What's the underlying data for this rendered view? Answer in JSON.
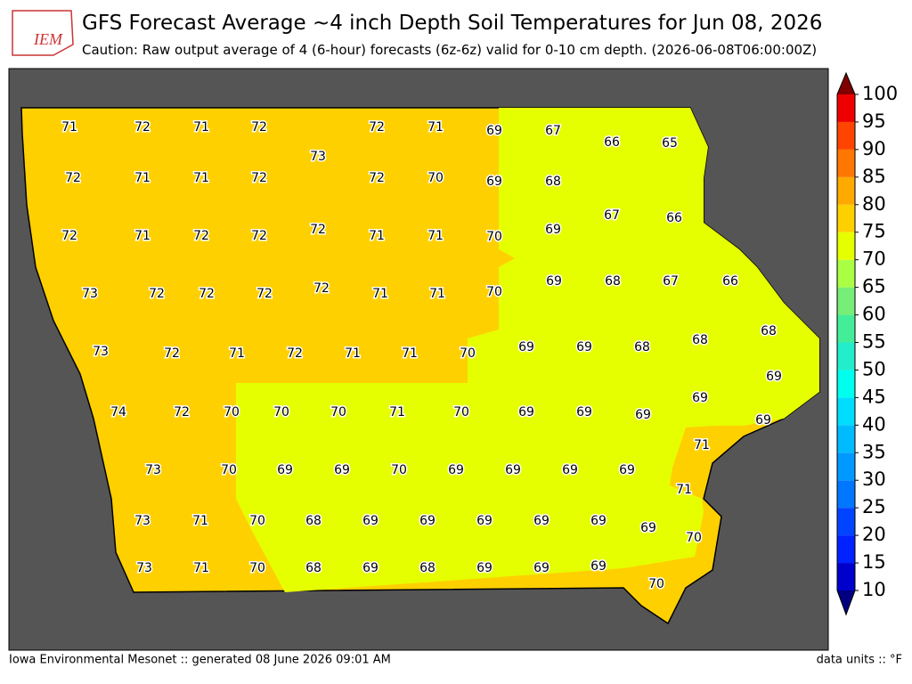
{
  "header": {
    "logo": "IEM",
    "title": "GFS Forecast Average ~4 inch Depth Soil Temperatures for Jun 08, 2026",
    "subtitle": "Caution: Raw output average of 4 (6-hour) forecasts (6z-6z) valid for 0-10 cm depth. (2026-06-08T06:00:00Z)"
  },
  "counties": [
    71,
    72,
    71,
    72,
    72,
    71,
    69,
    67,
    66,
    65,
    73,
    72,
    71,
    71,
    72,
    72,
    70,
    69,
    68,
    72,
    71,
    72,
    72,
    72,
    71,
    71,
    70,
    69,
    67,
    66,
    73,
    72,
    72,
    72,
    72,
    71,
    71,
    70,
    69,
    68,
    67,
    66,
    73,
    72,
    71,
    72,
    71,
    71,
    70,
    69,
    69,
    68,
    68,
    68,
    74,
    72,
    70,
    70,
    70,
    71,
    70,
    69,
    69,
    69,
    69,
    69,
    69,
    71,
    73,
    70,
    69,
    69,
    70,
    69,
    69,
    69,
    69,
    71,
    73,
    71,
    70,
    68,
    69,
    69,
    69,
    69,
    69,
    69,
    70,
    73,
    71,
    70,
    68,
    69,
    68,
    69,
    69,
    69,
    70
  ],
  "colorbar": {
    "ticks": [
      10,
      15,
      20,
      25,
      30,
      35,
      40,
      45,
      50,
      55,
      60,
      65,
      70,
      75,
      80,
      85,
      90,
      95,
      100
    ],
    "colors": [
      "#0000cc",
      "#0022ff",
      "#0044ff",
      "#0077ff",
      "#0099ff",
      "#00bbff",
      "#00ddff",
      "#00ffee",
      "#22eecc",
      "#44ee99",
      "#77ee77",
      "#aaff44",
      "#e5ff00",
      "#ffd000",
      "#ffaa00",
      "#ff7700",
      "#ff4400",
      "#ee0000"
    ],
    "under": "#000080",
    "over": "#800000"
  },
  "map_colors": {
    "background": "#555555",
    "warm": "#ffd000",
    "mild": "#e5ff00"
  },
  "footer": {
    "left": "Iowa Environmental Mesonet :: generated 08 June 2026 09:01 AM",
    "right": "data units :: °F"
  }
}
